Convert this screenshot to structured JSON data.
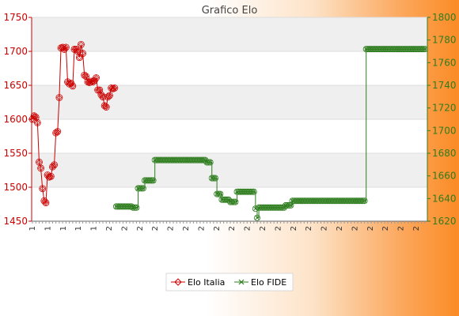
{
  "chart_data": {
    "type": "line",
    "title": "Grafico Elo",
    "xlabel": "",
    "ylabel": "",
    "y_left": {
      "range": [
        1450,
        1750
      ],
      "ticks": [
        1450,
        1500,
        1550,
        1600,
        1650,
        1700,
        1750
      ],
      "color": "#cc0000"
    },
    "y_right": {
      "range": [
        1620,
        1800
      ],
      "ticks": [
        1620,
        1640,
        1660,
        1680,
        1700,
        1720,
        1740,
        1760,
        1780,
        1800
      ],
      "color": "#2e7d1e"
    },
    "grid": true,
    "legend_position": "bottom-center",
    "x_count": 170,
    "series": [
      {
        "name": "Elo Italia",
        "axis": "left",
        "color": "#cc0000",
        "marker": "diamond",
        "points": [
          [
            0,
            1600
          ],
          [
            1,
            1605
          ],
          [
            2,
            1603
          ],
          [
            3,
            1595
          ],
          [
            4,
            1537
          ],
          [
            5,
            1528
          ],
          [
            6,
            1498
          ],
          [
            7,
            1480
          ],
          [
            8,
            1477
          ],
          [
            9,
            1518
          ],
          [
            10,
            1515
          ],
          [
            11,
            1516
          ],
          [
            12,
            1530
          ],
          [
            13,
            1533
          ],
          [
            14,
            1580
          ],
          [
            15,
            1582
          ],
          [
            16,
            1632
          ],
          [
            17,
            1705
          ],
          [
            18,
            1706
          ],
          [
            19,
            1703
          ],
          [
            20,
            1706
          ],
          [
            21,
            1655
          ],
          [
            22,
            1652
          ],
          [
            23,
            1653
          ],
          [
            24,
            1649
          ],
          [
            25,
            1703
          ],
          [
            26,
            1703
          ],
          [
            27,
            1700
          ],
          [
            28,
            1691
          ],
          [
            29,
            1710
          ],
          [
            30,
            1697
          ],
          [
            31,
            1665
          ],
          [
            32,
            1663
          ],
          [
            33,
            1655
          ],
          [
            34,
            1654
          ],
          [
            35,
            1656
          ],
          [
            36,
            1655
          ],
          [
            37,
            1657
          ],
          [
            38,
            1661
          ],
          [
            39,
            1643
          ],
          [
            40,
            1643
          ],
          [
            41,
            1636
          ],
          [
            42,
            1633
          ],
          [
            43,
            1620
          ],
          [
            44,
            1618
          ],
          [
            45,
            1633
          ],
          [
            46,
            1635
          ],
          [
            47,
            1646
          ],
          [
            48,
            1645
          ],
          [
            49,
            1646
          ]
        ]
      },
      {
        "name": "Elo FIDE",
        "axis": "right",
        "color": "#2e7d1e",
        "marker": "x",
        "segments": [
          [
            50,
            60,
            1633
          ],
          [
            60,
            63,
            1632
          ],
          [
            63,
            67,
            1649
          ],
          [
            67,
            73,
            1656
          ],
          [
            73,
            104,
            1674
          ],
          [
            104,
            107,
            1672
          ],
          [
            107,
            110,
            1658
          ],
          [
            110,
            113,
            1644
          ],
          [
            113,
            118,
            1639
          ],
          [
            118,
            122,
            1637
          ],
          [
            122,
            133,
            1646
          ],
          [
            133,
            134,
            1631
          ],
          [
            134,
            135,
            1623
          ],
          [
            135,
            151,
            1632
          ],
          [
            151,
            155,
            1634
          ],
          [
            155,
            157,
            1638
          ],
          [
            157,
            199,
            1638
          ],
          [
            199,
            233,
            1772
          ],
          [
            233,
            235,
            1772
          ]
        ]
      }
    ],
    "x_tick_labels": [
      "1",
      "1",
      "1",
      "1",
      "1",
      "2",
      "2",
      "2",
      "2",
      "2",
      "2",
      "2",
      "2",
      "2",
      "2",
      "2",
      "2",
      "2",
      "2",
      "2",
      "2",
      "2",
      "2",
      "2",
      "2",
      "2"
    ]
  }
}
